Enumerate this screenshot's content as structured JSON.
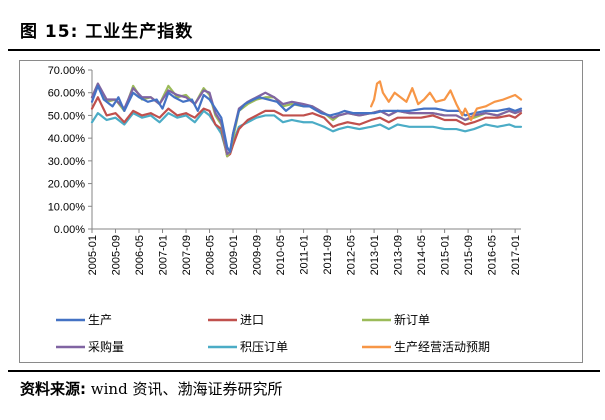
{
  "figure": {
    "title": "图 15:  工业生产指数",
    "source_label": "资料来源:",
    "source_text": "wind 资讯、渤海证券研究所"
  },
  "chart_data": {
    "type": "line",
    "title": "",
    "xlabel": "",
    "ylabel": "",
    "ylim": [
      0,
      70
    ],
    "ytick_labels": [
      "0.00%",
      "10.00%",
      "20.00%",
      "30.00%",
      "40.00%",
      "50.00%",
      "60.00%",
      "70.00%"
    ],
    "ytick_values": [
      0,
      10,
      20,
      30,
      40,
      50,
      60,
      70
    ],
    "x_start": "2005-01",
    "x_end": "2017-03",
    "xtick_labels": [
      "2005-01",
      "2005-09",
      "2006-05",
      "2007-01",
      "2007-09",
      "2008-05",
      "2009-01",
      "2009-09",
      "2010-05",
      "2011-01",
      "2011-09",
      "2012-05",
      "2013-01",
      "2013-09",
      "2014-05",
      "2015-01",
      "2015-09",
      "2016-05",
      "2017-01"
    ],
    "grid": false,
    "legend_position": "bottom",
    "series": [
      {
        "name": "生产",
        "color": "#4472c4",
        "anchors": [
          [
            "2005-01",
            56
          ],
          [
            "2005-03",
            63
          ],
          [
            "2005-05",
            57
          ],
          [
            "2005-08",
            54
          ],
          [
            "2005-10",
            58
          ],
          [
            "2005-12",
            52
          ],
          [
            "2006-03",
            60
          ],
          [
            "2006-05",
            58
          ],
          [
            "2006-08",
            56
          ],
          [
            "2006-11",
            57
          ],
          [
            "2007-01",
            53
          ],
          [
            "2007-03",
            60
          ],
          [
            "2007-05",
            58
          ],
          [
            "2007-08",
            56
          ],
          [
            "2007-11",
            57
          ],
          [
            "2008-01",
            52
          ],
          [
            "2008-03",
            59
          ],
          [
            "2008-05",
            57
          ],
          [
            "2008-07",
            53
          ],
          [
            "2008-09",
            49
          ],
          [
            "2008-11",
            36
          ],
          [
            "2008-12",
            34
          ],
          [
            "2009-01",
            42
          ],
          [
            "2009-03",
            52
          ],
          [
            "2009-05",
            55
          ],
          [
            "2009-08",
            57
          ],
          [
            "2009-10",
            58
          ],
          [
            "2010-01",
            57
          ],
          [
            "2010-04",
            56
          ],
          [
            "2010-07",
            52
          ],
          [
            "2010-10",
            55
          ],
          [
            "2011-01",
            54
          ],
          [
            "2011-03",
            54
          ],
          [
            "2011-07",
            51
          ],
          [
            "2011-10",
            50
          ],
          [
            "2012-01",
            51
          ],
          [
            "2012-03",
            52
          ],
          [
            "2012-06",
            51
          ],
          [
            "2012-09",
            51
          ],
          [
            "2013-01",
            51
          ],
          [
            "2013-04",
            52
          ],
          [
            "2013-08",
            52
          ],
          [
            "2014-01",
            52
          ],
          [
            "2014-06",
            53
          ],
          [
            "2014-10",
            53
          ],
          [
            "2015-02",
            52
          ],
          [
            "2015-06",
            52
          ],
          [
            "2015-08",
            50
          ],
          [
            "2015-11",
            51
          ],
          [
            "2016-03",
            52
          ],
          [
            "2016-07",
            52
          ],
          [
            "2016-11",
            53
          ],
          [
            "2017-01",
            52
          ],
          [
            "2017-03",
            53
          ]
        ]
      },
      {
        "name": "进口",
        "color": "#c0504d",
        "anchors": [
          [
            "2005-01",
            53
          ],
          [
            "2005-03",
            58
          ],
          [
            "2005-06",
            50
          ],
          [
            "2005-09",
            51
          ],
          [
            "2005-12",
            47
          ],
          [
            "2006-03",
            52
          ],
          [
            "2006-06",
            50
          ],
          [
            "2006-09",
            51
          ],
          [
            "2006-12",
            49
          ],
          [
            "2007-03",
            53
          ],
          [
            "2007-06",
            50
          ],
          [
            "2007-09",
            51
          ],
          [
            "2007-12",
            49
          ],
          [
            "2008-03",
            53
          ],
          [
            "2008-05",
            52
          ],
          [
            "2008-07",
            46
          ],
          [
            "2008-09",
            44
          ],
          [
            "2008-11",
            32
          ],
          [
            "2008-12",
            33
          ],
          [
            "2009-01",
            37
          ],
          [
            "2009-03",
            44
          ],
          [
            "2009-06",
            48
          ],
          [
            "2009-09",
            50
          ],
          [
            "2009-12",
            52
          ],
          [
            "2010-03",
            52
          ],
          [
            "2010-06",
            50
          ],
          [
            "2010-09",
            50
          ],
          [
            "2011-01",
            50
          ],
          [
            "2011-04",
            51
          ],
          [
            "2011-08",
            49
          ],
          [
            "2011-11",
            45
          ],
          [
            "2012-01",
            46
          ],
          [
            "2012-04",
            47
          ],
          [
            "2012-08",
            46
          ],
          [
            "2012-12",
            48
          ],
          [
            "2013-03",
            49
          ],
          [
            "2013-06",
            47
          ],
          [
            "2013-09",
            49
          ],
          [
            "2014-01",
            49
          ],
          [
            "2014-05",
            49
          ],
          [
            "2014-09",
            50
          ],
          [
            "2015-01",
            48
          ],
          [
            "2015-05",
            48
          ],
          [
            "2015-08",
            46
          ],
          [
            "2015-11",
            47
          ],
          [
            "2016-03",
            49
          ],
          [
            "2016-07",
            49
          ],
          [
            "2016-11",
            50
          ],
          [
            "2017-01",
            49
          ],
          [
            "2017-03",
            51
          ]
        ]
      },
      {
        "name": "新订单",
        "color": "#9bbb59",
        "anchors": [
          [
            "2005-01",
            58
          ],
          [
            "2005-03",
            64
          ],
          [
            "2005-06",
            56
          ],
          [
            "2005-09",
            57
          ],
          [
            "2005-12",
            52
          ],
          [
            "2006-03",
            63
          ],
          [
            "2006-06",
            57
          ],
          [
            "2006-09",
            58
          ],
          [
            "2006-12",
            55
          ],
          [
            "2007-03",
            63
          ],
          [
            "2007-06",
            58
          ],
          [
            "2007-09",
            59
          ],
          [
            "2007-12",
            55
          ],
          [
            "2008-03",
            62
          ],
          [
            "2008-05",
            59
          ],
          [
            "2008-07",
            50
          ],
          [
            "2008-09",
            46
          ],
          [
            "2008-11",
            32
          ],
          [
            "2008-12",
            34
          ],
          [
            "2009-01",
            40
          ],
          [
            "2009-03",
            52
          ],
          [
            "2009-06",
            55
          ],
          [
            "2009-09",
            57
          ],
          [
            "2009-12",
            58
          ],
          [
            "2010-03",
            58
          ],
          [
            "2010-06",
            54
          ],
          [
            "2010-09",
            55
          ],
          [
            "2011-01",
            54
          ],
          [
            "2011-04",
            54
          ],
          [
            "2011-08",
            51
          ],
          [
            "2011-11",
            48
          ],
          [
            "2012-01",
            50
          ],
          [
            "2012-04",
            51
          ],
          [
            "2012-08",
            50
          ],
          [
            "2012-12",
            51
          ],
          [
            "2013-03",
            52
          ],
          [
            "2013-06",
            50
          ],
          [
            "2013-09",
            52
          ],
          [
            "2014-01",
            51
          ],
          [
            "2014-05",
            51
          ],
          [
            "2014-09",
            51
          ],
          [
            "2015-01",
            50
          ],
          [
            "2015-05",
            50
          ],
          [
            "2015-08",
            48
          ],
          [
            "2015-11",
            49
          ],
          [
            "2016-03",
            51
          ],
          [
            "2016-07",
            50
          ],
          [
            "2016-11",
            52
          ],
          [
            "2017-01",
            51
          ],
          [
            "2017-03",
            52
          ]
        ]
      },
      {
        "name": "采购量",
        "color": "#8064a2",
        "anchors": [
          [
            "2005-01",
            58
          ],
          [
            "2005-03",
            64
          ],
          [
            "2005-06",
            57
          ],
          [
            "2005-09",
            57
          ],
          [
            "2005-12",
            53
          ],
          [
            "2006-03",
            62
          ],
          [
            "2006-06",
            58
          ],
          [
            "2006-09",
            58
          ],
          [
            "2006-12",
            55
          ],
          [
            "2007-03",
            61
          ],
          [
            "2007-06",
            59
          ],
          [
            "2007-09",
            58
          ],
          [
            "2007-12",
            55
          ],
          [
            "2008-03",
            61
          ],
          [
            "2008-05",
            60
          ],
          [
            "2008-07",
            51
          ],
          [
            "2008-09",
            47
          ],
          [
            "2008-11",
            33
          ],
          [
            "2008-12",
            34
          ],
          [
            "2009-01",
            42
          ],
          [
            "2009-03",
            53
          ],
          [
            "2009-06",
            56
          ],
          [
            "2009-09",
            58
          ],
          [
            "2009-12",
            60
          ],
          [
            "2010-03",
            58
          ],
          [
            "2010-06",
            55
          ],
          [
            "2010-09",
            56
          ],
          [
            "2011-01",
            55
          ],
          [
            "2011-04",
            54
          ],
          [
            "2011-08",
            51
          ],
          [
            "2011-11",
            49
          ],
          [
            "2012-01",
            50
          ],
          [
            "2012-04",
            51
          ],
          [
            "2012-08",
            50
          ],
          [
            "2012-12",
            51
          ],
          [
            "2013-03",
            52
          ],
          [
            "2013-06",
            50
          ],
          [
            "2013-09",
            52
          ],
          [
            "2014-01",
            51
          ],
          [
            "2014-05",
            51
          ],
          [
            "2014-09",
            51
          ],
          [
            "2015-01",
            50
          ],
          [
            "2015-05",
            50
          ],
          [
            "2015-08",
            48
          ],
          [
            "2015-11",
            50
          ],
          [
            "2016-03",
            51
          ],
          [
            "2016-07",
            50
          ],
          [
            "2016-11",
            52
          ],
          [
            "2017-01",
            51
          ],
          [
            "2017-03",
            52
          ]
        ]
      },
      {
        "name": "积压订单",
        "color": "#4bacc6",
        "anchors": [
          [
            "2005-01",
            47
          ],
          [
            "2005-03",
            51
          ],
          [
            "2005-06",
            48
          ],
          [
            "2005-09",
            49
          ],
          [
            "2005-12",
            46
          ],
          [
            "2006-03",
            51
          ],
          [
            "2006-06",
            49
          ],
          [
            "2006-09",
            50
          ],
          [
            "2006-12",
            47
          ],
          [
            "2007-03",
            51
          ],
          [
            "2007-06",
            49
          ],
          [
            "2007-09",
            50
          ],
          [
            "2007-12",
            47
          ],
          [
            "2008-03",
            52
          ],
          [
            "2008-05",
            50
          ],
          [
            "2008-07",
            46
          ],
          [
            "2008-09",
            42
          ],
          [
            "2008-11",
            33
          ],
          [
            "2008-12",
            34
          ],
          [
            "2009-01",
            38
          ],
          [
            "2009-03",
            45
          ],
          [
            "2009-06",
            47
          ],
          [
            "2009-09",
            49
          ],
          [
            "2009-12",
            50
          ],
          [
            "2010-03",
            50
          ],
          [
            "2010-06",
            47
          ],
          [
            "2010-09",
            48
          ],
          [
            "2011-01",
            47
          ],
          [
            "2011-04",
            47
          ],
          [
            "2011-08",
            45
          ],
          [
            "2011-11",
            43
          ],
          [
            "2012-01",
            44
          ],
          [
            "2012-04",
            45
          ],
          [
            "2012-08",
            44
          ],
          [
            "2012-12",
            45
          ],
          [
            "2013-03",
            46
          ],
          [
            "2013-06",
            44
          ],
          [
            "2013-09",
            46
          ],
          [
            "2014-01",
            45
          ],
          [
            "2014-05",
            45
          ],
          [
            "2014-09",
            45
          ],
          [
            "2015-01",
            44
          ],
          [
            "2015-05",
            44
          ],
          [
            "2015-08",
            43
          ],
          [
            "2015-11",
            44
          ],
          [
            "2016-03",
            46
          ],
          [
            "2016-07",
            45
          ],
          [
            "2016-11",
            46
          ],
          [
            "2017-01",
            45
          ],
          [
            "2017-03",
            45
          ]
        ]
      },
      {
        "name": "生产经营活动预期",
        "color": "#f79646",
        "anchors": [
          [
            "2012-12",
            54
          ],
          [
            "2013-01",
            57
          ],
          [
            "2013-02",
            64
          ],
          [
            "2013-03",
            65
          ],
          [
            "2013-04",
            60
          ],
          [
            "2013-06",
            56
          ],
          [
            "2013-08",
            60
          ],
          [
            "2013-10",
            58
          ],
          [
            "2013-12",
            56
          ],
          [
            "2014-02",
            62
          ],
          [
            "2014-04",
            55
          ],
          [
            "2014-06",
            57
          ],
          [
            "2014-08",
            60
          ],
          [
            "2014-10",
            56
          ],
          [
            "2015-01",
            57
          ],
          [
            "2015-03",
            61
          ],
          [
            "2015-05",
            55
          ],
          [
            "2015-07",
            50
          ],
          [
            "2015-08",
            53
          ],
          [
            "2015-10",
            48
          ],
          [
            "2015-12",
            53
          ],
          [
            "2016-03",
            54
          ],
          [
            "2016-06",
            56
          ],
          [
            "2016-09",
            57
          ],
          [
            "2016-11",
            58
          ],
          [
            "2017-01",
            59
          ],
          [
            "2017-03",
            57
          ]
        ]
      }
    ]
  }
}
